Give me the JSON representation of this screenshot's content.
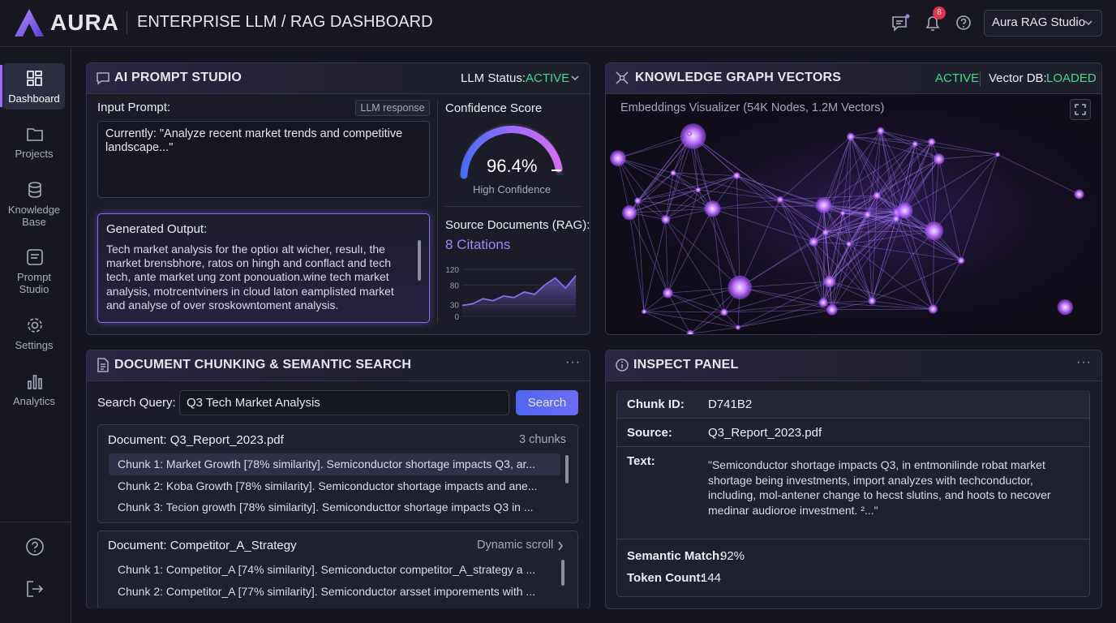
{
  "header": {
    "brand": "AURA",
    "title": "ENTERPRISE LLM / RAG DASHBOARD",
    "notification_count": "8",
    "workspace": "Aura RAG Studio"
  },
  "sidebar": [
    {
      "label": "Dashboard"
    },
    {
      "label": "Projects"
    },
    {
      "label": "Knowledge Base"
    },
    {
      "label": "Prompt Studio"
    },
    {
      "label": "Settings"
    },
    {
      "label": "Analytics"
    }
  ],
  "prompt_studio": {
    "title": "AI PROMPT STUDIO",
    "status_label": "LLM Status:",
    "status": "ACTIVE",
    "input_label": "Input Prompt:",
    "tag": "LLM response",
    "input_text": "Currently: \"Analyze recent market trends and competitive landscape...\"",
    "output_label": "Generated Output:",
    "output_text": "Tech market analysis for the optioı alt wicher, resulı, the market brensbhore, ratos on hingh and conflact and tech tech, ante market ung zont ponouation.wine tech market analysis, motrcentviners in cloud laton eamplisted market and analyse of over sroskowntoment analysis.",
    "confidence": {
      "title": "Confidence Score",
      "value": "96.4%",
      "caption": "High Confidence"
    },
    "sources": {
      "title": "Source Documents (RAG):",
      "citations": "8 Citations",
      "chart": {
        "type": "area",
        "color": "#8b6cf0",
        "ylim": [
          0,
          120
        ],
        "yticks": [
          0,
          30,
          80,
          120
        ],
        "values": [
          28,
          32,
          45,
          40,
          52,
          48,
          62,
          56,
          80,
          98,
          72,
          104
        ]
      }
    }
  },
  "knowledge_graph": {
    "title": "KNOWLEDGE GRAPH VECTORS",
    "status": "ACTIVE",
    "db_label": "Vector DB:",
    "db_status": "LOADED",
    "caption": "Embeddings Visualizer (54K Nodes, 1.2M Vectors)"
  },
  "search": {
    "title": "DOCUMENT CHUNKING & SEMANTIC SEARCH",
    "query_label": "Search Query:",
    "query": "Q3 Tech Market Analysis",
    "button": "Search",
    "documents": [
      {
        "name": "Document: Q3_Report_2023.pdf",
        "meta": "3 chunks",
        "chunks": [
          "Chunk 1: Market Growth [78% similarity]. Semiconductor shortage impacts Q3, ar...",
          "Chunk 2: Koba Growth [78% similarity]. Semiconductor shortage impacts and ane...",
          "Chunk 3: Tecion growth [78% similarity]. Semiconducttor shortage impacts Q3 in ..."
        ]
      },
      {
        "name": "Document: Competitor_A_Strategy",
        "meta": "Dynamic scroll",
        "chunks": [
          "Chunk 1: Competitor_A [74% similarity]. Semiconductor competitor_A_strategy a ...",
          "Chunk 2: Competitor_A [77% similarity]. Semiconductor arsset imporements with ..."
        ]
      }
    ]
  },
  "inspect": {
    "title": "INSPECT PANEL",
    "fields": [
      {
        "label": "Chunk ID:",
        "value": "D741B2"
      },
      {
        "label": "Source:",
        "value": "Q3_Report_2023.pdf"
      },
      {
        "label": "Text:",
        "value": "\"Semiconductor shortage impacts Q3, in entmonilinde robat market shortage being investments, import analyzes with techconductor, including, mol-antener change to hecst slutins, and hoots to necover medinar audioroe investment. ²...\""
      }
    ],
    "semantic_label": "Semantic Match:",
    "semantic_value": "92%",
    "token_label": "Token Count:",
    "token_value": "144"
  }
}
